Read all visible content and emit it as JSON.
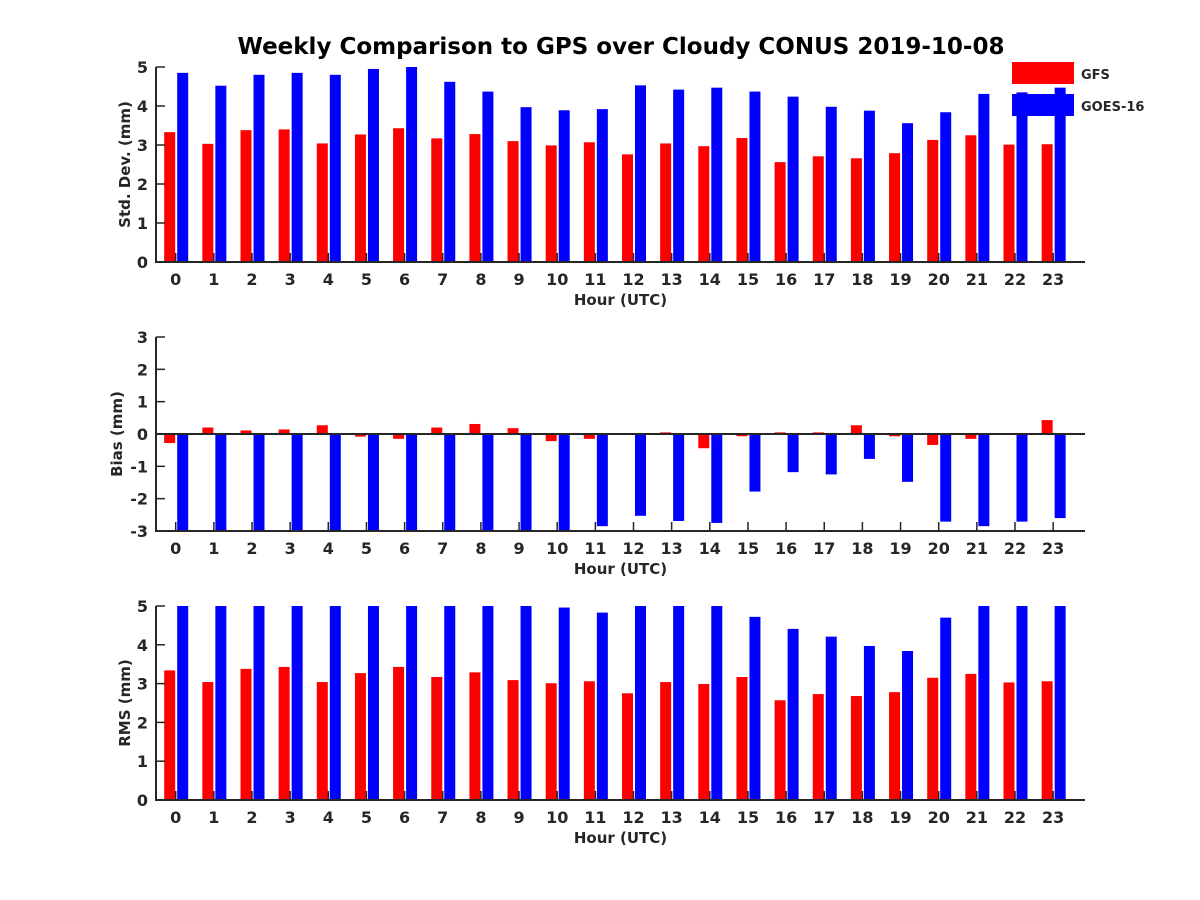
{
  "title": "Weekly Comparison to GPS over Cloudy CONUS 2019-10-08",
  "colors": {
    "GFS": "#ff0000",
    "GOES-16": "#0000ff",
    "axis": "#262626"
  },
  "legend": {
    "placement": "top-right",
    "entries": [
      "GFS",
      "GOES-16"
    ]
  },
  "chart_data": [
    {
      "type": "bar",
      "xlabel": "Hour (UTC)",
      "ylabel": "Std. Dev. (mm)",
      "ylim": [
        0,
        5
      ],
      "yticks": [
        0,
        1,
        2,
        3,
        4,
        5
      ],
      "categories": [
        "0",
        "1",
        "2",
        "3",
        "4",
        "5",
        "6",
        "7",
        "8",
        "9",
        "10",
        "11",
        "12",
        "13",
        "14",
        "15",
        "16",
        "17",
        "18",
        "19",
        "20",
        "21",
        "22",
        "23"
      ],
      "series": [
        {
          "name": "GFS",
          "values": [
            3.33,
            3.03,
            3.38,
            3.4,
            3.04,
            3.27,
            3.43,
            3.17,
            3.28,
            3.1,
            2.99,
            3.07,
            2.76,
            3.04,
            2.97,
            3.18,
            2.56,
            2.71,
            2.66,
            2.79,
            3.13,
            3.25,
            3.01,
            3.02
          ]
        },
        {
          "name": "GOES-16",
          "values": [
            4.85,
            4.52,
            4.8,
            4.85,
            4.8,
            4.95,
            5.0,
            4.62,
            4.37,
            3.97,
            3.89,
            3.92,
            4.53,
            4.42,
            4.47,
            4.37,
            4.24,
            3.98,
            3.88,
            3.56,
            3.84,
            4.31,
            4.35,
            4.47
          ]
        }
      ]
    },
    {
      "type": "bar",
      "xlabel": "Hour (UTC)",
      "ylabel": "Bias (mm)",
      "ylim": [
        -3,
        3
      ],
      "yticks": [
        -3,
        -2,
        -1,
        0,
        1,
        2,
        3
      ],
      "categories": [
        "0",
        "1",
        "2",
        "3",
        "4",
        "5",
        "6",
        "7",
        "8",
        "9",
        "10",
        "11",
        "12",
        "13",
        "14",
        "15",
        "16",
        "17",
        "18",
        "19",
        "20",
        "21",
        "22",
        "23"
      ],
      "series": [
        {
          "name": "GFS",
          "values": [
            -0.28,
            0.2,
            0.11,
            0.14,
            0.27,
            -0.08,
            -0.15,
            0.2,
            0.31,
            0.18,
            -0.22,
            -0.15,
            0.0,
            0.05,
            -0.44,
            -0.07,
            0.05,
            0.05,
            0.27,
            -0.07,
            -0.34,
            -0.15,
            0.02,
            0.43
          ]
        },
        {
          "name": "GOES-16",
          "values": [
            -3.0,
            -3.0,
            -3.0,
            -3.0,
            -3.0,
            -3.0,
            -3.0,
            -3.0,
            -3.0,
            -3.0,
            -3.0,
            -2.85,
            -2.53,
            -2.69,
            -2.75,
            -1.78,
            -1.18,
            -1.25,
            -0.77,
            -1.48,
            -2.71,
            -2.85,
            -2.71,
            -2.6
          ]
        }
      ]
    },
    {
      "type": "bar",
      "xlabel": "Hour (UTC)",
      "ylabel": "RMS (mm)",
      "ylim": [
        0,
        5
      ],
      "yticks": [
        0,
        1,
        2,
        3,
        4,
        5
      ],
      "categories": [
        "0",
        "1",
        "2",
        "3",
        "4",
        "5",
        "6",
        "7",
        "8",
        "9",
        "10",
        "11",
        "12",
        "13",
        "14",
        "15",
        "16",
        "17",
        "18",
        "19",
        "20",
        "21",
        "22",
        "23"
      ],
      "series": [
        {
          "name": "GFS",
          "values": [
            3.34,
            3.04,
            3.38,
            3.43,
            3.04,
            3.27,
            3.43,
            3.17,
            3.29,
            3.09,
            3.01,
            3.06,
            2.75,
            3.04,
            2.99,
            3.17,
            2.57,
            2.73,
            2.68,
            2.78,
            3.15,
            3.25,
            3.03,
            3.06
          ]
        },
        {
          "name": "GOES-16",
          "values": [
            5.0,
            5.0,
            5.0,
            5.0,
            5.0,
            5.0,
            5.0,
            5.0,
            5.0,
            5.0,
            4.96,
            4.83,
            5.0,
            5.0,
            5.0,
            4.72,
            4.41,
            4.21,
            3.97,
            3.84,
            4.7,
            5.0,
            5.0,
            5.0
          ]
        }
      ]
    }
  ]
}
